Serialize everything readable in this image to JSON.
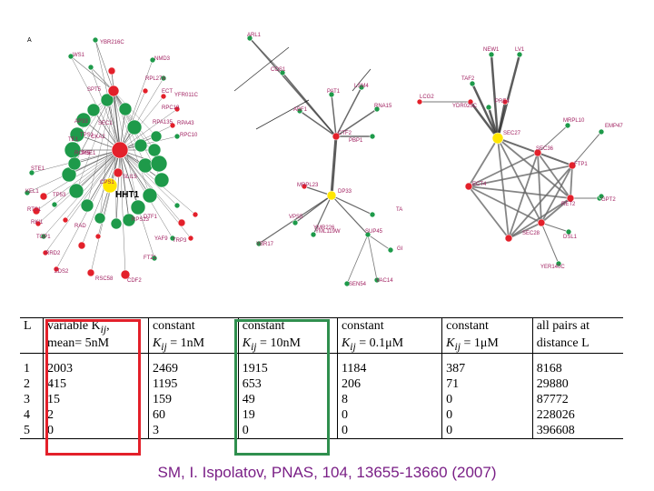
{
  "figure": {
    "panel_label": "A",
    "highlight_label": "HHT1",
    "node_labels_left": [
      "YBR216C",
      "WS1",
      "NMD3",
      "RPL27A",
      "SPT5",
      "ECT",
      "YFR011C",
      "RPC19",
      "RPA43",
      "RPC10",
      "RPA135",
      "SEC1",
      "AP33",
      "TE1",
      "TPS1",
      "CKA2",
      "PSE1",
      "RCM5",
      "STE1",
      "KEL1",
      "TP53",
      "RTS1",
      "RKI1",
      "TOP1",
      "RRD2",
      "ZDS2",
      "RAD",
      "DTF1",
      "FTZ1",
      "YAF9",
      "TRP3",
      "RPS23",
      "CDF2",
      "RSC58",
      "CPS1",
      "SLI15"
    ],
    "node_labels_mid": [
      "ARL1",
      "COS1",
      "PAT1",
      "LSM4",
      "RNA15",
      "ABF1",
      "CTF2",
      "PBP1",
      "MRPL23",
      "DP33",
      "TA",
      "YMR226",
      "VPS5",
      "YML119W",
      "SUP45",
      "YBR17",
      "SEN54",
      "VAC14",
      "GI"
    ],
    "node_labels_right": [
      "NEW1",
      "LV1",
      "TAF2",
      "PRE4",
      "LCG2",
      "YDR025C",
      "SEC27",
      "MRPL10",
      "EMP47",
      "SEC36",
      "FTP1",
      "ECT4",
      "RET2",
      "GPT2",
      "SEC28",
      "DSL1",
      "YER140C"
    ]
  },
  "table": {
    "headers": [
      {
        "line1": "L",
        "line2": ""
      },
      {
        "line1": "variable K",
        "sub": "ij",
        "line1_tail": ",",
        "line2": "mean= 5nM"
      },
      {
        "line1": "constant",
        "line2": "K",
        "sub2": "ij",
        "line2_tail": " = 1nM"
      },
      {
        "line1": "constant",
        "line2": "K",
        "sub2": "ij",
        "line2_tail": " = 10nM"
      },
      {
        "line1": "constant",
        "line2": "K",
        "sub2": "ij",
        "line2_tail": " = 0.1μM"
      },
      {
        "line1": "constant",
        "line2": "K",
        "sub2": "ij",
        "line2_tail": " = 1μM"
      },
      {
        "line1": "all   pairs   at",
        "line2": "distance L"
      }
    ],
    "rows": [
      [
        "1",
        "2003",
        "2469",
        "1915",
        "1184",
        "387",
        "8168"
      ],
      [
        "2",
        "415",
        "1195",
        "653",
        "206",
        "71",
        "29880"
      ],
      [
        "3",
        "15",
        "159",
        "49",
        "8",
        "0",
        "87772"
      ],
      [
        "4",
        "2",
        "60",
        "19",
        "0",
        "0",
        "228026"
      ],
      [
        "5",
        "0",
        "3",
        "0",
        "0",
        "0",
        "396608"
      ]
    ]
  },
  "citation": "SM, I. Ispolatov, PNAS, 104, 13655-13660  (2007)",
  "colors": {
    "node_green": "#1e9a4a",
    "node_red": "#e3202a",
    "node_yellow": "#ffe600",
    "edge_gray": "#555555",
    "highlight_red": "#e3202a",
    "highlight_green": "#2f8f4e",
    "citation": "#7a1f86"
  }
}
